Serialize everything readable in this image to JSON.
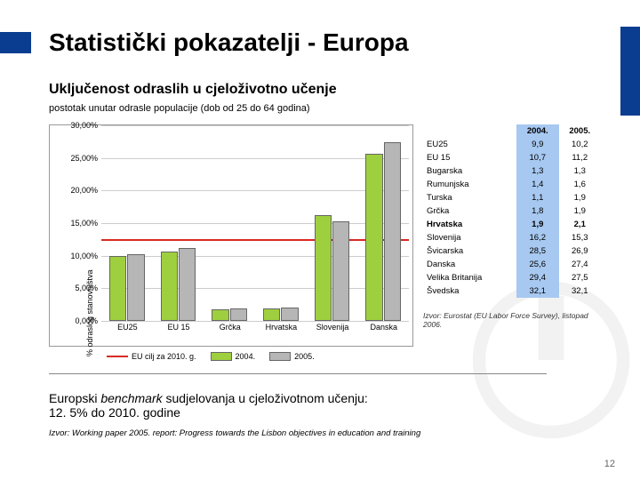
{
  "title": "Statistički pokazatelji - Europa",
  "subtitle": "Uključenost odraslih u cjeloživotno učenje",
  "subdesc": "postotak unutar odrasle populacije (dob od 25 do 64 godina)",
  "y_label": "% odraslog stanovništva",
  "chart": {
    "type": "bar",
    "ylim": [
      0,
      30
    ],
    "ytick_step": 5,
    "ytick_format_pct": true,
    "benchmark": 12.5,
    "benchmark_color": "#d82b24",
    "grid_color": "#cccccc",
    "categories": [
      "EU25",
      "EU 15",
      "Grčka",
      "Hrvatska",
      "Slovenija",
      "Danska"
    ],
    "series": [
      {
        "name": "2004.",
        "color": "#9ecf3f",
        "values": [
          9.9,
          10.7,
          1.8,
          1.9,
          16.2,
          25.6
        ]
      },
      {
        "name": "2005.",
        "color": "#b6b6b6",
        "values": [
          10.2,
          11.2,
          1.9,
          2.1,
          15.3,
          27.4
        ]
      }
    ],
    "bg_color": "#ffffff"
  },
  "legend": {
    "benchmark_label": "EU cilj za 2010. g.",
    "s1": "2004.",
    "s2": "2005."
  },
  "table": {
    "cols": [
      "",
      "2004.",
      "2005."
    ],
    "col2004_bg": "#a7c8f0",
    "rows": [
      [
        "EU25",
        "9,9",
        "10,2"
      ],
      [
        "EU 15",
        "10,7",
        "11,2"
      ],
      [
        "Bugarska",
        "1,3",
        "1,3"
      ],
      [
        "Rumunjska",
        "1,4",
        "1,6"
      ],
      [
        "Turska",
        "1,1",
        "1,9"
      ],
      [
        "Grčka",
        "1,8",
        "1,9"
      ],
      [
        "Hrvatska",
        "1,9",
        "2,1"
      ],
      [
        "Slovenija",
        "16,2",
        "15,3"
      ],
      [
        "Švicarska",
        "28,5",
        "26,9"
      ],
      [
        "Danska",
        "25,6",
        "27,4"
      ],
      [
        "Velika Britanija",
        "29,4",
        "27,5"
      ],
      [
        "Švedska",
        "32,1",
        "32,1"
      ]
    ],
    "bold_row_index": 6,
    "source": "Izvor: Eurostat (EU Labor Force Survey), listopad 2006."
  },
  "bottom": {
    "line1a": "Europski ",
    "line1b": "benchmark",
    "line1c": " sudjelovanja u cjeloživotnom učenju:",
    "line2": "12. 5% do 2010. godine"
  },
  "source": "Izvor: Working paper 2005. report: Progress towards the Lisbon objectives in education and training",
  "pagenum": "12",
  "colors": {
    "brand": "#0a3d8f",
    "bar2004": "#9ecf3f",
    "bar2005": "#b6b6b6",
    "benchmark": "#d82b24"
  }
}
